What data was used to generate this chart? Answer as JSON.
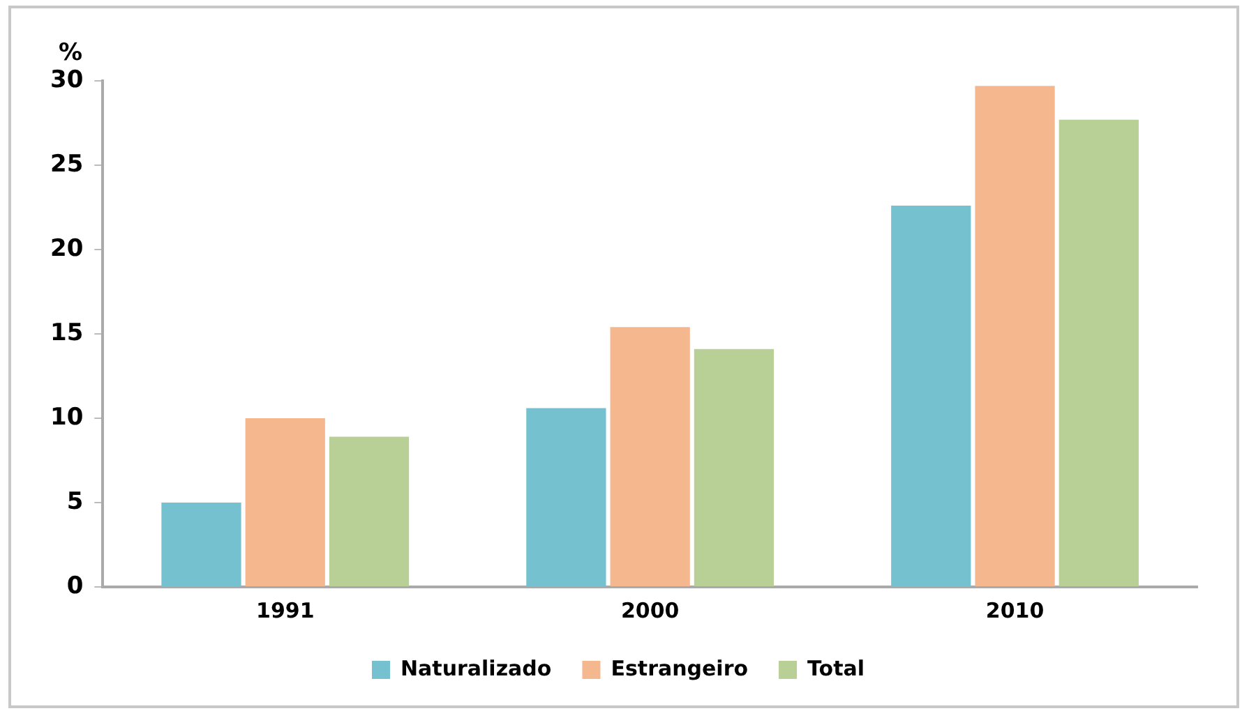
{
  "chart_data": {
    "type": "bar",
    "ylabel": "%",
    "categories": [
      "1991",
      "2000",
      "2010"
    ],
    "series": [
      {
        "name": "Naturalizado",
        "color": "#75c1d0",
        "values": [
          5.0,
          10.6,
          22.6
        ]
      },
      {
        "name": "Estrangeiro",
        "color": "#f4b78e",
        "values": [
          10.0,
          15.4,
          29.7
        ]
      },
      {
        "name": "Total",
        "color": "#b8d096",
        "values": [
          8.9,
          14.1,
          27.7
        ]
      }
    ],
    "ylim": [
      0,
      30
    ],
    "yticks": [
      0,
      5,
      10,
      15,
      20,
      25,
      30
    ],
    "grid": false,
    "legend": "bottom"
  }
}
